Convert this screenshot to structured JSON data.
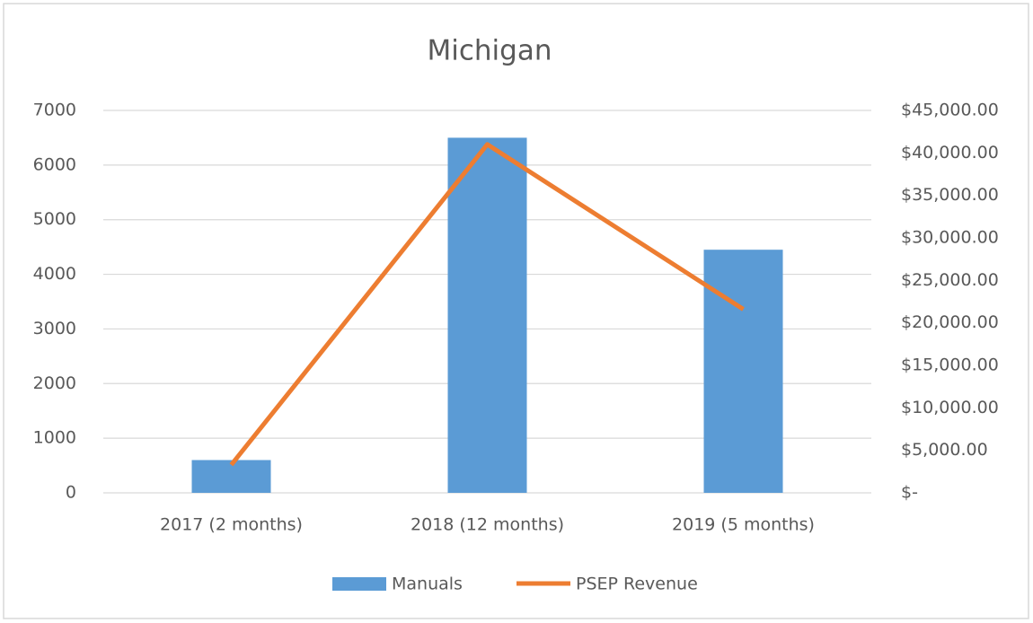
{
  "chart_data": {
    "type": "bar-line",
    "title": "Michigan",
    "categories": [
      "2017 (2 months)",
      "2018 (12 months)",
      "2019 (5 months)"
    ],
    "series": [
      {
        "name": "Manuals",
        "type": "bar",
        "color": "#5b9bd5",
        "values": [
          600,
          6500,
          4450
        ]
      },
      {
        "name": "PSEP Revenue",
        "type": "line",
        "axis": "y2",
        "color": "#ed7d31",
        "values": [
          3300,
          41000,
          21600
        ]
      }
    ],
    "ylim": [
      0,
      7000
    ],
    "yticks": [
      0,
      1000,
      2000,
      3000,
      4000,
      5000,
      6000,
      7000
    ],
    "y2lim": [
      0,
      45000
    ],
    "y2ticks": [
      {
        "value": 0,
        "label": "$-"
      },
      {
        "value": 5000,
        "label": "$5,000.00"
      },
      {
        "value": 10000,
        "label": "$10,000.00"
      },
      {
        "value": 15000,
        "label": "$15,000.00"
      },
      {
        "value": 20000,
        "label": "$20,000.00"
      },
      {
        "value": 25000,
        "label": "$25,000.00"
      },
      {
        "value": 30000,
        "label": "$30,000.00"
      },
      {
        "value": 35000,
        "label": "$35,000.00"
      },
      {
        "value": 40000,
        "label": "$40,000.00"
      },
      {
        "value": 45000,
        "label": "$45,000.00"
      }
    ],
    "grid": true,
    "legend": "bottom"
  }
}
